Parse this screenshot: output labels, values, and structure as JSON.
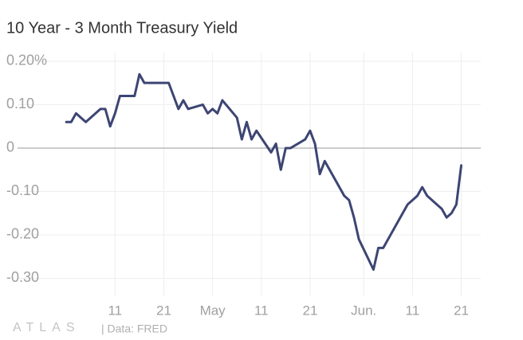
{
  "chart_data": {
    "type": "line",
    "title": "10 Year - 3 Month Treasury Yield",
    "footer": {
      "logo": "ATLAS",
      "source": "| Data: FRED"
    },
    "x": [
      "04-01",
      "04-02",
      "04-03",
      "04-05",
      "04-08",
      "04-09",
      "04-10",
      "04-11",
      "04-12",
      "04-15",
      "04-16",
      "04-17",
      "04-18",
      "04-22",
      "04-23",
      "04-24",
      "04-25",
      "04-26",
      "04-29",
      "04-30",
      "05-01",
      "05-02",
      "05-03",
      "05-06",
      "05-07",
      "05-08",
      "05-09",
      "05-10",
      "05-13",
      "05-14",
      "05-15",
      "05-16",
      "05-17",
      "05-20",
      "05-21",
      "05-22",
      "05-23",
      "05-24",
      "05-28",
      "05-29",
      "05-30",
      "05-31",
      "06-03",
      "06-04",
      "06-05",
      "06-06",
      "06-07",
      "06-10",
      "06-11",
      "06-12",
      "06-13",
      "06-14",
      "06-17",
      "06-18",
      "06-19",
      "06-20",
      "06-21"
    ],
    "series": [
      {
        "name": "10 Year - 3 Month Treasury Yield",
        "color": "#3d4573",
        "values": [
          0.06,
          0.06,
          0.08,
          0.06,
          0.09,
          0.09,
          0.05,
          0.08,
          0.12,
          0.12,
          0.17,
          0.15,
          0.15,
          0.15,
          0.12,
          0.09,
          0.11,
          0.09,
          0.1,
          0.08,
          0.09,
          0.08,
          0.11,
          0.07,
          0.02,
          0.06,
          0.02,
          0.04,
          -0.01,
          0.01,
          -0.05,
          0,
          0,
          0.02,
          0.04,
          0.01,
          -0.06,
          -0.03,
          -0.11,
          -0.12,
          -0.16,
          -0.21,
          -0.28,
          -0.23,
          -0.23,
          -0.21,
          -0.19,
          -0.13,
          -0.12,
          -0.11,
          -0.09,
          -0.11,
          -0.14,
          -0.16,
          -0.15,
          -0.13,
          -0.04
        ]
      }
    ],
    "xlim": [
      "03-22",
      "06-25"
    ],
    "xticks": [
      {
        "value": "04-11",
        "label": "11"
      },
      {
        "value": "04-21",
        "label": "21"
      },
      {
        "value": "05-01",
        "label": "May"
      },
      {
        "value": "05-11",
        "label": "11"
      },
      {
        "value": "05-21",
        "label": "21"
      },
      {
        "value": "06-01",
        "label": "Jun."
      },
      {
        "value": "06-11",
        "label": "11"
      },
      {
        "value": "06-21",
        "label": "21"
      }
    ],
    "ylim": [
      -0.34,
      0.22
    ],
    "yticks": [
      {
        "value": 0.2,
        "label": "0.20%"
      },
      {
        "value": 0.1,
        "label": "0.10"
      },
      0,
      {
        "value": -0.1,
        "label": "-0.10"
      },
      {
        "value": -0.2,
        "label": "-0.20"
      },
      {
        "value": -0.3,
        "label": "-0.30"
      }
    ],
    "grid": true
  }
}
